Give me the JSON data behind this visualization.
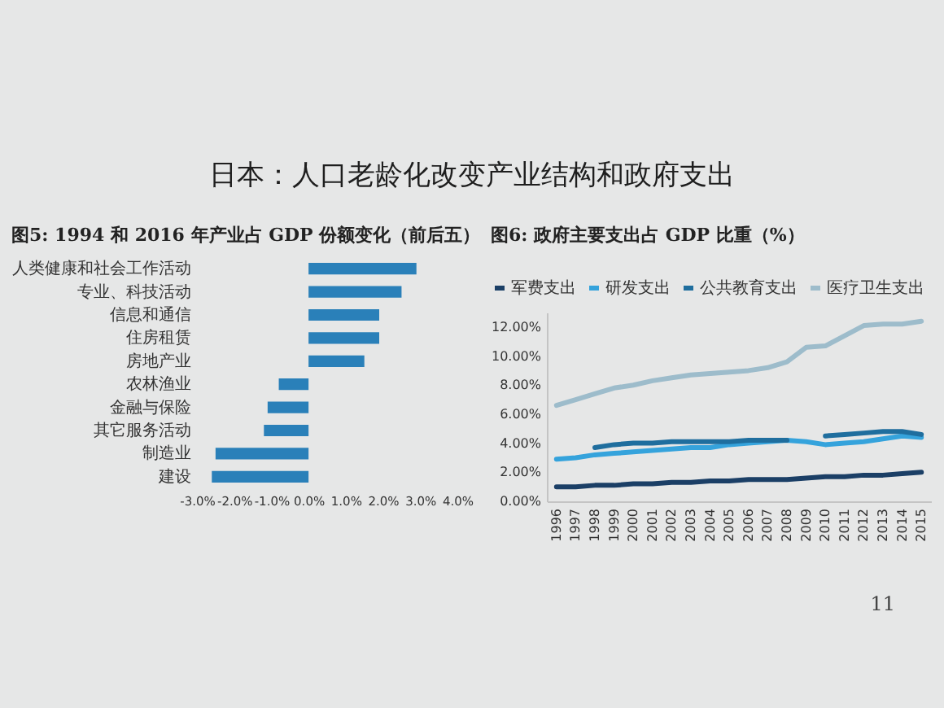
{
  "chart_data": [
    {
      "type": "other",
      "title": "日本：人口老龄化改变产业结构和政府支出",
      "annotations": [
        "11"
      ]
    },
    {
      "type": "bar",
      "orientation": "horizontal",
      "title": "图5:  1994 和 2016 年产业占 GDP 份额变化（前后五）",
      "categories": [
        "人类健康和社会工作活动",
        "专业、科技活动",
        "信息和通信",
        "住房租赁",
        "房地产业",
        "农林渔业",
        "金融与保险",
        "其它服务活动",
        "制造业",
        "建设"
      ],
      "values": [
        2.9,
        2.5,
        1.9,
        1.9,
        1.5,
        -0.8,
        -1.1,
        -1.2,
        -2.5,
        -2.6
      ],
      "color": "#2a80b9",
      "xlim": [
        -3,
        4
      ],
      "xticks": [
        {
          "value": -3,
          "label": "-3.0%"
        },
        {
          "value": -2,
          "label": "-2.0%"
        },
        {
          "value": -1,
          "label": "-1.0%"
        },
        {
          "value": 0,
          "label": "0.0%"
        },
        {
          "value": 1,
          "label": "1.0%"
        },
        {
          "value": 2,
          "label": "2.0%"
        },
        {
          "value": 3,
          "label": "3.0%"
        },
        {
          "value": 4,
          "label": "4.0%"
        }
      ]
    },
    {
      "type": "line",
      "title": "图6:  政府主要支出占 GDP 比重（%）",
      "categories": [
        "1996",
        "1997",
        "1998",
        "1999",
        "2000",
        "2001",
        "2002",
        "2003",
        "2004",
        "2005",
        "2006",
        "2007",
        "2008",
        "2009",
        "2010",
        "2011",
        "2012",
        "2013",
        "2014",
        "2015"
      ],
      "series": [
        {
          "name": "军费支出",
          "color": "#1b3f66",
          "values": [
            1.0,
            1.0,
            1.1,
            1.1,
            1.2,
            1.2,
            1.3,
            1.3,
            1.4,
            1.4,
            1.5,
            1.5,
            1.5,
            1.6,
            1.7,
            1.7,
            1.8,
            1.8,
            1.9,
            2.0
          ]
        },
        {
          "name": "研发支出",
          "color": "#35a3dc",
          "values": [
            2.9,
            3.0,
            3.2,
            3.3,
            3.4,
            3.5,
            3.6,
            3.7,
            3.7,
            3.9,
            4.0,
            4.1,
            4.2,
            4.1,
            3.9,
            4.0,
            4.1,
            4.3,
            4.5,
            4.4
          ]
        },
        {
          "name": "公共教育支出",
          "color": "#1f6e9e",
          "values": [
            null,
            null,
            3.7,
            3.9,
            4.0,
            4.0,
            4.1,
            4.1,
            4.1,
            4.1,
            4.2,
            4.2,
            4.2,
            null,
            4.5,
            4.6,
            4.7,
            4.8,
            4.8,
            4.6
          ]
        },
        {
          "name": "医疗卫生支出",
          "color": "#9dbccb",
          "values": [
            6.6,
            7.0,
            7.4,
            7.8,
            8.0,
            8.3,
            8.5,
            8.7,
            8.8,
            8.9,
            9.0,
            9.2,
            9.6,
            10.6,
            10.7,
            11.4,
            12.1,
            12.2,
            12.2,
            12.4
          ]
        }
      ],
      "ylim": [
        0,
        13
      ],
      "yticks": [
        {
          "value": 0,
          "label": "0.00%"
        },
        {
          "value": 2,
          "label": "2.00%"
        },
        {
          "value": 4,
          "label": "4.00%"
        },
        {
          "value": 6,
          "label": "6.00%"
        },
        {
          "value": 8,
          "label": "8.00%"
        },
        {
          "value": 10,
          "label": "10.00%"
        },
        {
          "value": 12,
          "label": "12.00%"
        }
      ],
      "legend": "top"
    }
  ]
}
